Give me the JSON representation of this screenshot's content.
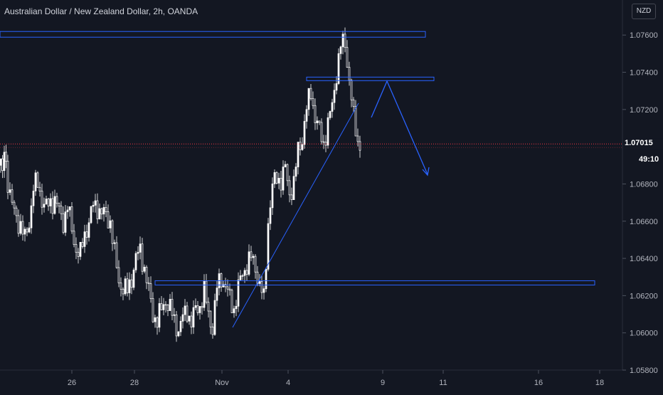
{
  "header": {
    "title": "Australian Dollar / New Zealand Dollar, 2h, OANDA",
    "currency": "NZD"
  },
  "price_tag": {
    "price": "1.07015",
    "countdown": "49:10"
  },
  "colors": {
    "background": "#131722",
    "candle": "#ffffff",
    "drawing": "#2962ff",
    "current_price_line": "#f23645",
    "axis_text": "#b2b5be"
  },
  "chart_data": {
    "type": "candlestick",
    "title": "Australian Dollar / New Zealand Dollar, 2h, OANDA",
    "y_axis": {
      "ticks": [
        "1.07600",
        "1.07400",
        "1.07200",
        "1.06800",
        "1.06600",
        "1.06400",
        "1.06200",
        "1.06000",
        "1.05800"
      ],
      "range": [
        1.058,
        1.0775
      ],
      "current_price": 1.07015,
      "position": "right"
    },
    "x_axis": {
      "ticks": [
        "26",
        "28",
        "Nov",
        "4",
        "9",
        "11",
        "16",
        "18"
      ]
    },
    "candles_ohlc_close_path": [
      [
        0,
        1.069
      ],
      [
        5,
        1.0695
      ],
      [
        10,
        1.0682
      ],
      [
        16,
        1.0668
      ],
      [
        22,
        1.0662
      ],
      [
        28,
        1.0658
      ],
      [
        34,
        1.065
      ],
      [
        40,
        1.066
      ],
      [
        46,
        1.0678
      ],
      [
        52,
        1.068
      ],
      [
        58,
        1.0672
      ],
      [
        64,
        1.0667
      ],
      [
        70,
        1.067
      ],
      [
        76,
        1.0672
      ],
      [
        82,
        1.0665
      ],
      [
        88,
        1.066
      ],
      [
        94,
        1.0668
      ],
      [
        100,
        1.0655
      ],
      [
        106,
        1.0645
      ],
      [
        112,
        1.0642
      ],
      [
        118,
        1.0653
      ],
      [
        124,
        1.066
      ],
      [
        130,
        1.0668
      ],
      [
        136,
        1.0668
      ],
      [
        142,
        1.0664
      ],
      [
        148,
        1.0663
      ],
      [
        154,
        1.066
      ],
      [
        160,
        1.0642
      ],
      [
        166,
        1.0628
      ],
      [
        172,
        1.0624
      ],
      [
        178,
        1.0622
      ],
      [
        184,
        1.063
      ],
      [
        190,
        1.064
      ],
      [
        196,
        1.0644
      ],
      [
        202,
        1.0635
      ],
      [
        208,
        1.0622
      ],
      [
        214,
        1.061
      ],
      [
        220,
        1.0607
      ],
      [
        226,
        1.0612
      ],
      [
        232,
        1.0618
      ],
      [
        238,
        1.0613
      ],
      [
        244,
        1.0606
      ],
      [
        250,
        1.0602
      ],
      [
        256,
        1.0608
      ],
      [
        262,
        1.0612
      ],
      [
        268,
        1.0606
      ],
      [
        274,
        1.0612
      ],
      [
        280,
        1.0615
      ],
      [
        286,
        1.0622
      ],
      [
        292,
        1.061
      ],
      [
        298,
        1.0603
      ],
      [
        304,
        1.0624
      ],
      [
        310,
        1.063
      ],
      [
        316,
        1.0625
      ],
      [
        322,
        1.0618
      ],
      [
        328,
        1.0613
      ],
      [
        334,
        1.0624
      ],
      [
        340,
        1.0632
      ],
      [
        346,
        1.0637
      ],
      [
        352,
        1.064
      ],
      [
        358,
        1.0636
      ],
      [
        364,
        1.0625
      ],
      [
        370,
        1.0618
      ],
      [
        376,
        1.066
      ],
      [
        382,
        1.0678
      ],
      [
        388,
        1.0684
      ],
      [
        394,
        1.0682
      ],
      [
        400,
        1.0688
      ],
      [
        406,
        1.0675
      ],
      [
        412,
        1.068
      ],
      [
        418,
        1.0698
      ],
      [
        424,
        1.0705
      ],
      [
        430,
        1.072
      ],
      [
        436,
        1.073
      ],
      [
        442,
        1.0716
      ],
      [
        448,
        1.0708
      ],
      [
        454,
        1.0702
      ],
      [
        460,
        1.0712
      ],
      [
        466,
        1.0722
      ],
      [
        472,
        1.074
      ],
      [
        478,
        1.0754
      ],
      [
        484,
        1.0756
      ],
      [
        490,
        1.0736
      ],
      [
        496,
        1.0715
      ],
      [
        502,
        1.0703
      ],
      [
        508,
        1.0702
      ]
    ],
    "drawings": {
      "resistance_zone_top": [
        1.076,
        1.0759
      ],
      "resistance_zone_mid": [
        1.07374,
        1.07364
      ],
      "support_zone": [
        1.0628,
        1.06268
      ],
      "trendline": "rising",
      "projection": "up then down"
    }
  }
}
